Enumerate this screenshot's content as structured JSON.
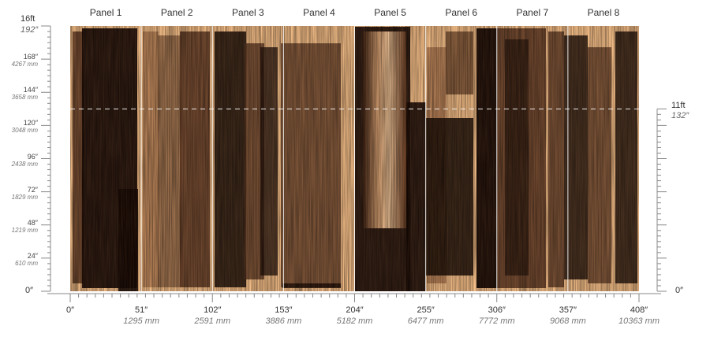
{
  "panels": [
    "Panel 1",
    "Panel 2",
    "Panel 3",
    "Panel 4",
    "Panel 5",
    "Panel 6",
    "Panel 7",
    "Panel 8"
  ],
  "left_scale": {
    "top_ft": "16ft",
    "top_in": "192″",
    "marks": [
      {
        "in": "168″",
        "mm": "4267 mm",
        "value": 168
      },
      {
        "in": "144″",
        "mm": "3658 mm",
        "value": 144
      },
      {
        "in": "120″",
        "mm": "3048 mm",
        "value": 120
      },
      {
        "in": "96″",
        "mm": "2438 mm",
        "value": 96
      },
      {
        "in": "72″",
        "mm": "1829 mm",
        "value": 72
      },
      {
        "in": "48″",
        "mm": "1219 mm",
        "value": 48
      },
      {
        "in": "24″",
        "mm": "610 mm",
        "value": 24
      }
    ],
    "zero": "0″"
  },
  "right_scale": {
    "ft": "11ft",
    "in": "132″",
    "zero": "0″",
    "value": 132
  },
  "bottom_scale": [
    {
      "in": "0″",
      "mm": "",
      "value": 0
    },
    {
      "in": "51″",
      "mm": "1295 mm",
      "value": 51
    },
    {
      "in": "102″",
      "mm": "2591 mm",
      "value": 102
    },
    {
      "in": "153″",
      "mm": "3886 mm",
      "value": 153
    },
    {
      "in": "204″",
      "mm": "5182 mm",
      "value": 204
    },
    {
      "in": "255″",
      "mm": "6477 mm",
      "value": 255
    },
    {
      "in": "306″",
      "mm": "7772 mm",
      "value": 306
    },
    {
      "in": "357″",
      "mm": "9068 mm",
      "value": 357
    },
    {
      "in": "408″",
      "mm": "10363 mm",
      "value": 408
    }
  ],
  "colors": {
    "canvas": "#f9c28b",
    "stroke_dark": "#180a05",
    "stroke_mid": "#5a3420",
    "stroke_light": "#a66f49",
    "divider": "#ffffff",
    "guide": "#ffffff"
  }
}
